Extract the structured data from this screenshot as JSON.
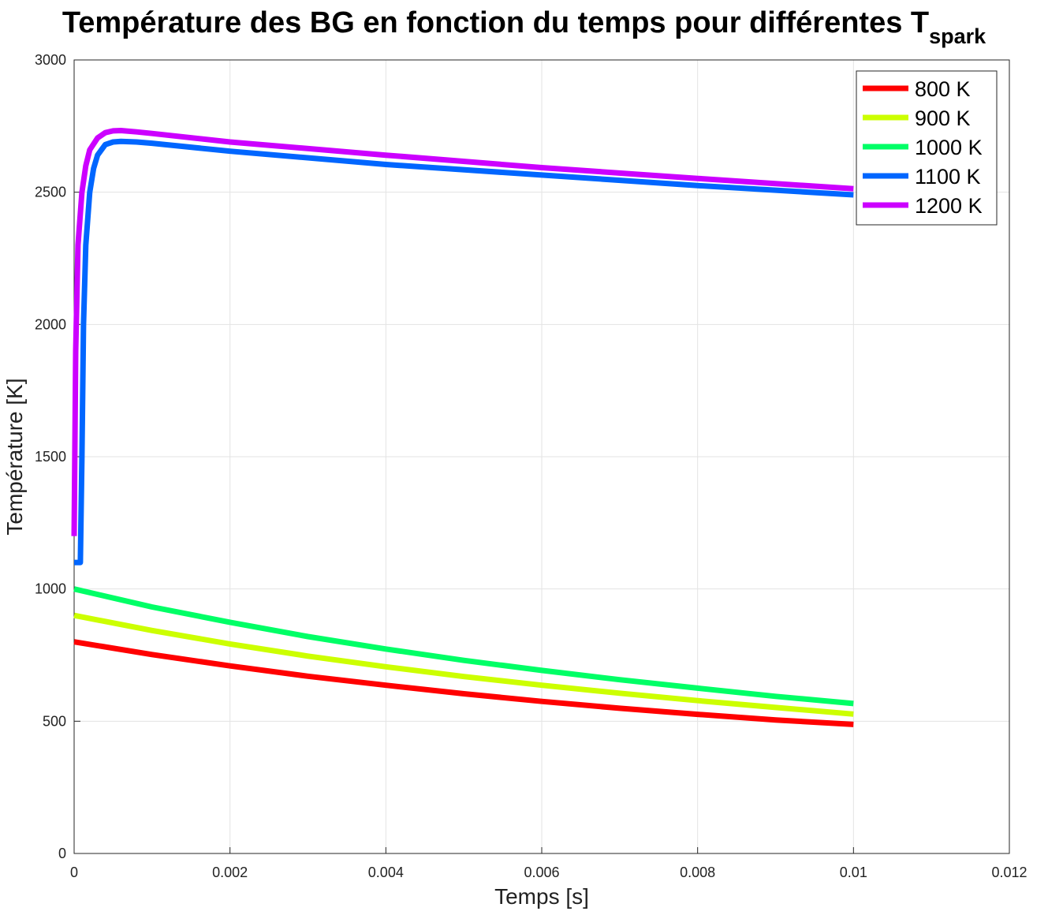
{
  "chart_data": {
    "type": "line",
    "title": "Température des BG en fonction du temps pour différentes T",
    "title_subscript": "spark",
    "xlabel": "Temps [s]",
    "ylabel": "Température [K]",
    "xlim": [
      0,
      0.012
    ],
    "ylim": [
      0,
      3000
    ],
    "xticks": [
      0,
      0.002,
      0.004,
      0.006,
      0.008,
      0.01,
      0.012
    ],
    "xtick_labels": [
      "0",
      "0.002",
      "0.004",
      "0.006",
      "0.008",
      "0.01",
      "0.012"
    ],
    "yticks": [
      0,
      500,
      1000,
      1500,
      2000,
      2500,
      3000
    ],
    "ytick_labels": [
      "0",
      "500",
      "1000",
      "1500",
      "2000",
      "2500",
      "3000"
    ],
    "grid": true,
    "legend_position": "top-right",
    "series": [
      {
        "name": "800 K",
        "color": "#ff0000",
        "x": [
          0,
          0.001,
          0.002,
          0.003,
          0.004,
          0.005,
          0.006,
          0.007,
          0.008,
          0.009,
          0.01
        ],
        "y": [
          800,
          752,
          709,
          670,
          636,
          604,
          575,
          549,
          526,
          505,
          488
        ]
      },
      {
        "name": "900 K",
        "color": "#ccff00",
        "x": [
          0,
          0.001,
          0.002,
          0.003,
          0.004,
          0.005,
          0.006,
          0.007,
          0.008,
          0.009,
          0.01
        ],
        "y": [
          900,
          843,
          792,
          746,
          706,
          669,
          636,
          606,
          578,
          552,
          527
        ]
      },
      {
        "name": "1000 K",
        "color": "#00ff66",
        "x": [
          0,
          0.001,
          0.002,
          0.003,
          0.004,
          0.005,
          0.006,
          0.007,
          0.008,
          0.009,
          0.01
        ],
        "y": [
          1000,
          932,
          874,
          820,
          773,
          730,
          692,
          657,
          625,
          594,
          567
        ]
      },
      {
        "name": "1100 K",
        "color": "#0066ff",
        "x": [
          0,
          8e-05,
          0.0001,
          0.00012,
          0.00015,
          0.0002,
          0.00025,
          0.0003,
          0.0004,
          0.0005,
          0.0006,
          0.0008,
          0.001,
          0.002,
          0.004,
          0.006,
          0.008,
          0.01
        ],
        "y": [
          1100,
          1100,
          1500,
          2000,
          2300,
          2500,
          2590,
          2640,
          2680,
          2690,
          2692,
          2690,
          2685,
          2655,
          2605,
          2565,
          2525,
          2490
        ]
      },
      {
        "name": "1200 K",
        "color": "#cc00ff",
        "x": [
          0,
          2e-05,
          5e-05,
          0.0001,
          0.00015,
          0.0002,
          0.0003,
          0.0004,
          0.0005,
          0.0006,
          0.0008,
          0.001,
          0.002,
          0.004,
          0.006,
          0.008,
          0.01
        ],
        "y": [
          1200,
          1900,
          2300,
          2500,
          2600,
          2660,
          2705,
          2725,
          2732,
          2733,
          2728,
          2722,
          2690,
          2640,
          2593,
          2552,
          2513
        ]
      }
    ]
  }
}
